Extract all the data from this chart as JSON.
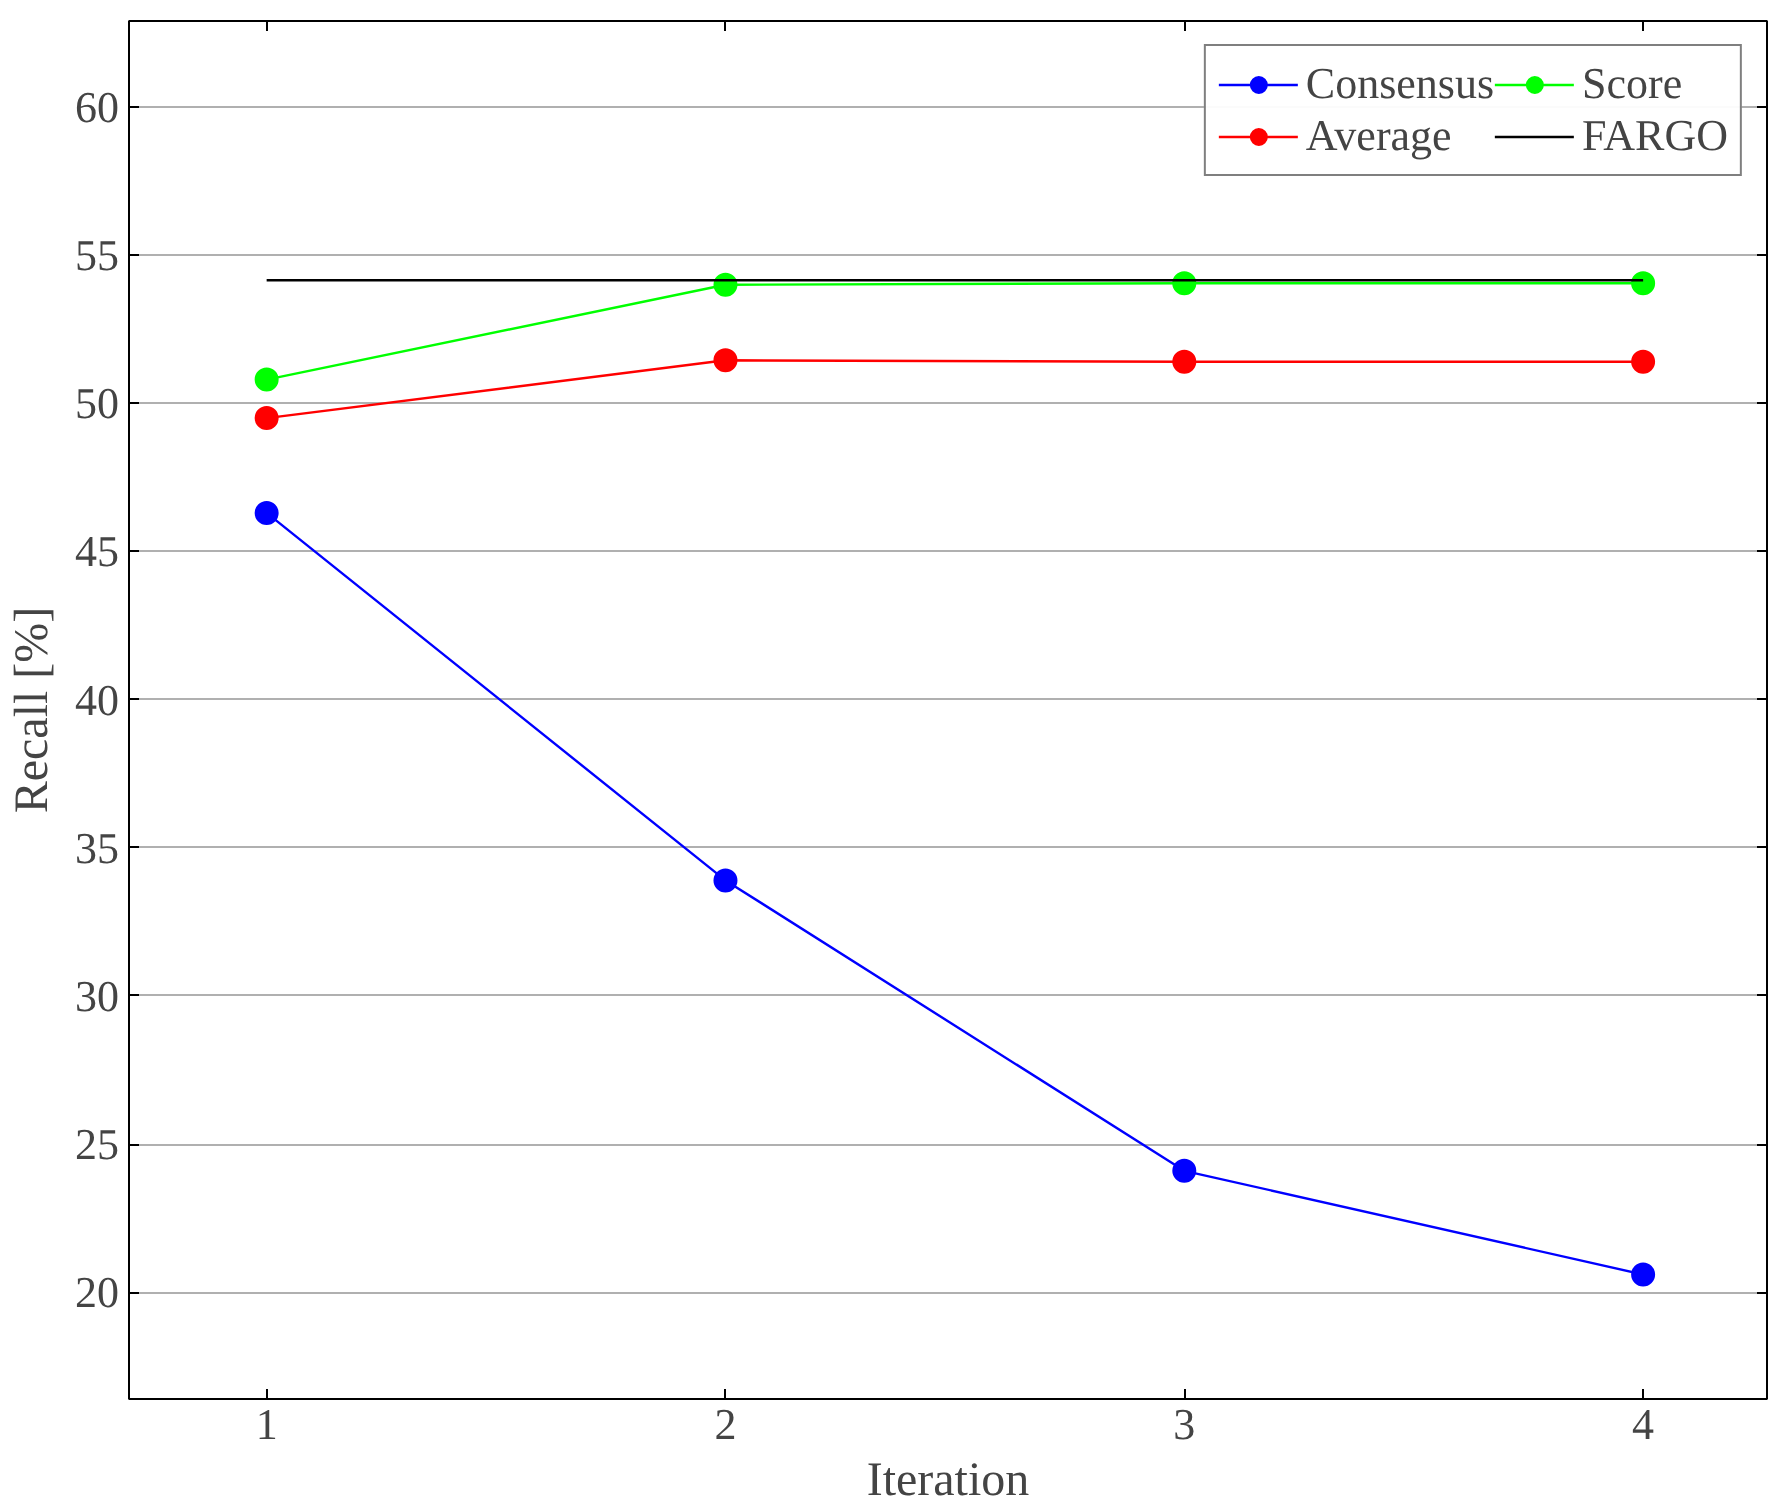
{
  "chart_data": {
    "type": "line",
    "xlabel": "Iteration",
    "ylabel": "Recall [%]",
    "x": [
      1,
      2,
      3,
      4
    ],
    "series": [
      {
        "name": "Consensus",
        "color": "#0000ff",
        "values": [
          46.3,
          33.9,
          24.1,
          20.6
        ]
      },
      {
        "name": "Average",
        "color": "#ff0000",
        "values": [
          49.5,
          51.45,
          51.4,
          51.4
        ]
      },
      {
        "name": "Score",
        "color": "#00ff00",
        "values": [
          50.8,
          54.0,
          54.05,
          54.05
        ]
      },
      {
        "name": "FARGO",
        "color": "#000000",
        "values": [
          54.15,
          54.15,
          54.15,
          54.15
        ],
        "marker": "none"
      }
    ],
    "xlim": [
      0.7,
      4.27
    ],
    "ylim": [
      16.4,
      62.9
    ],
    "xticks": [
      1,
      2,
      3,
      4
    ],
    "yticks": [
      20,
      25,
      30,
      35,
      40,
      45,
      50,
      55,
      60
    ],
    "grid": "y",
    "legend": "top right",
    "marker": "circle",
    "line_style": "solid"
  }
}
